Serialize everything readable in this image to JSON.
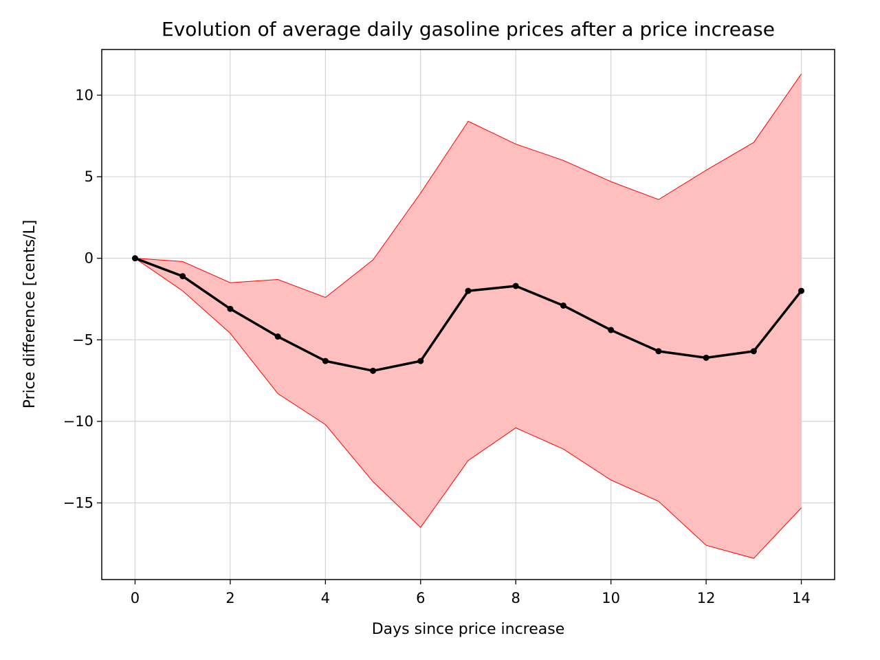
{
  "chart_data": {
    "type": "line",
    "title": "Evolution of average daily gasoline prices after a price increase",
    "xlabel": "Days since price increase",
    "ylabel": "Price difference [cents/L]",
    "xlim": [
      -0.7,
      14.7
    ],
    "ylim": [
      -19.7,
      12.8
    ],
    "grid": true,
    "x_ticks": [
      0,
      2,
      4,
      6,
      8,
      10,
      12,
      14
    ],
    "y_ticks": [
      10,
      5,
      0,
      -5,
      -10,
      -15
    ],
    "y_tick_labels": [
      "10",
      "5",
      "0",
      "−5",
      "−10",
      "−15"
    ],
    "x": [
      0,
      1,
      2,
      3,
      4,
      5,
      6,
      7,
      8,
      9,
      10,
      11,
      12,
      13,
      14
    ],
    "series": [
      {
        "values": [
          0,
          -1.1,
          -3.1,
          -4.8,
          -6.3,
          -6.9,
          -6.3,
          -2.0,
          -1.7,
          -2.9,
          -4.4,
          -5.7,
          -6.1,
          -5.7,
          -2.0
        ],
        "color": "#000000",
        "marker": "circle"
      }
    ],
    "band": {
      "upper": [
        0,
        -0.2,
        -1.5,
        -1.3,
        -2.4,
        -0.1,
        4.0,
        8.4,
        7.0,
        6.0,
        4.7,
        3.6,
        5.4,
        7.1,
        11.3
      ],
      "lower": [
        0,
        -2.0,
        -4.6,
        -8.3,
        -10.2,
        -13.7,
        -16.5,
        -12.4,
        -10.4,
        -11.7,
        -13.6,
        -14.9,
        -17.6,
        -18.4,
        -15.3
      ],
      "fill_color": "#ffbfbf",
      "edge_color": "#ff0000"
    }
  }
}
